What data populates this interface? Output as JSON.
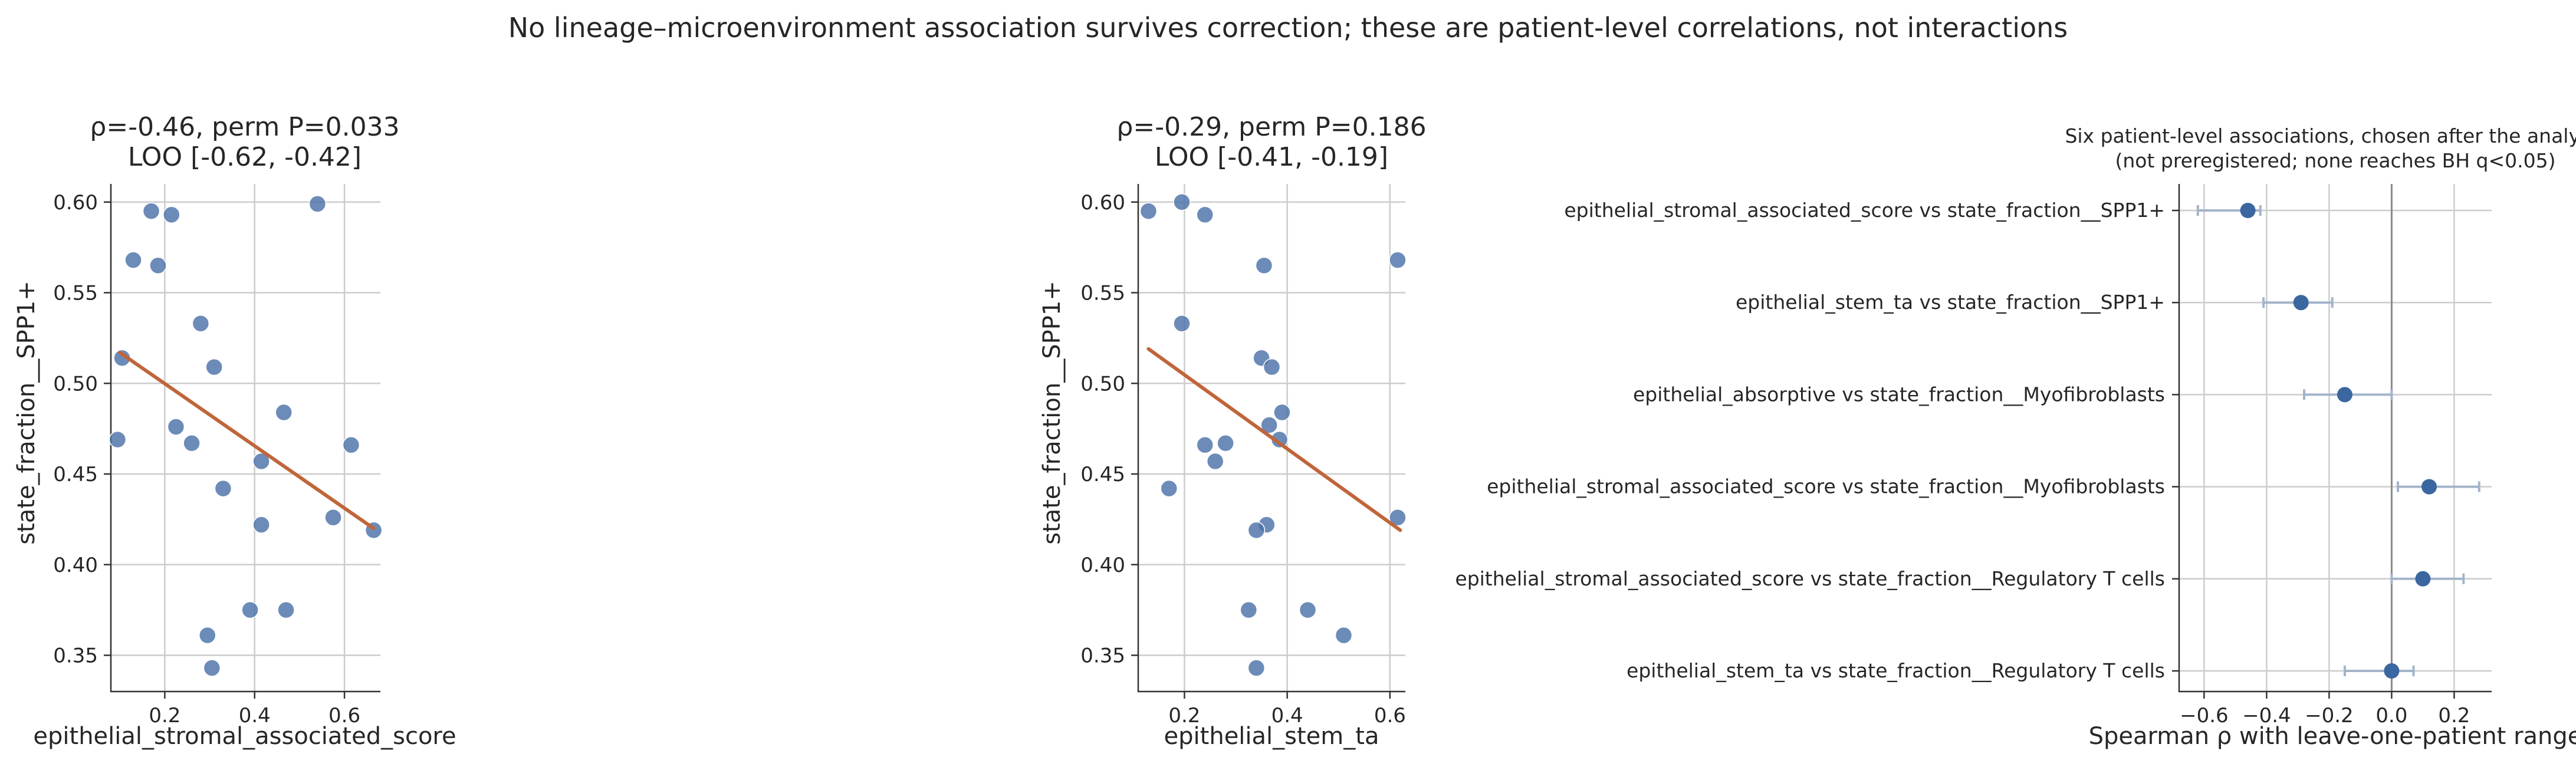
{
  "figure": {
    "suptitle": "No lineage–microenvironment association survives correction; these are patient-level correlations, not interactions"
  },
  "colors": {
    "point": "#4c72a8",
    "fit_line": "#c0653a",
    "forest_point": "#3b66a0",
    "forest_range": "#a3b4c9",
    "zero_line": "#8a8a8a"
  },
  "chart_data": [
    {
      "type": "scatter",
      "title_lines": [
        "ρ=-0.46, perm P=0.033",
        "LOO [-0.62, -0.42]"
      ],
      "xlabel": "epithelial_stromal_associated_score",
      "ylabel": "state_fraction__SPP1+",
      "xlim": [
        0.08,
        0.68
      ],
      "ylim": [
        0.33,
        0.61
      ],
      "xticks": [
        0.2,
        0.4,
        0.6
      ],
      "xtick_labels": [
        "0.2",
        "0.4",
        "0.6"
      ],
      "yticks": [
        0.35,
        0.4,
        0.45,
        0.5,
        0.55,
        0.6
      ],
      "ytick_labels": [
        "0.35",
        "0.40",
        "0.45",
        "0.50",
        "0.55",
        "0.60"
      ],
      "grid": true,
      "points": [
        {
          "x": 0.17,
          "y": 0.595
        },
        {
          "x": 0.215,
          "y": 0.593
        },
        {
          "x": 0.54,
          "y": 0.599
        },
        {
          "x": 0.13,
          "y": 0.568
        },
        {
          "x": 0.185,
          "y": 0.565
        },
        {
          "x": 0.28,
          "y": 0.533
        },
        {
          "x": 0.105,
          "y": 0.514
        },
        {
          "x": 0.31,
          "y": 0.509
        },
        {
          "x": 0.465,
          "y": 0.484
        },
        {
          "x": 0.225,
          "y": 0.476
        },
        {
          "x": 0.095,
          "y": 0.469
        },
        {
          "x": 0.26,
          "y": 0.467
        },
        {
          "x": 0.615,
          "y": 0.466
        },
        {
          "x": 0.415,
          "y": 0.457
        },
        {
          "x": 0.33,
          "y": 0.442
        },
        {
          "x": 0.575,
          "y": 0.426
        },
        {
          "x": 0.415,
          "y": 0.422
        },
        {
          "x": 0.665,
          "y": 0.419
        },
        {
          "x": 0.39,
          "y": 0.375
        },
        {
          "x": 0.47,
          "y": 0.375
        },
        {
          "x": 0.295,
          "y": 0.361
        },
        {
          "x": 0.305,
          "y": 0.343
        }
      ],
      "fit_line": {
        "x": [
          0.1,
          0.665
        ],
        "y": [
          0.517,
          0.42
        ]
      }
    },
    {
      "type": "scatter",
      "title_lines": [
        "ρ=-0.29, perm P=0.186",
        "LOO [-0.41, -0.19]"
      ],
      "xlabel": "epithelial_stem_ta",
      "ylabel": "state_fraction__SPP1+",
      "xlim": [
        0.11,
        0.63
      ],
      "ylim": [
        0.33,
        0.61
      ],
      "xticks": [
        0.2,
        0.4,
        0.6
      ],
      "xtick_labels": [
        "0.2",
        "0.4",
        "0.6"
      ],
      "yticks": [
        0.35,
        0.4,
        0.45,
        0.5,
        0.55,
        0.6
      ],
      "ytick_labels": [
        "0.35",
        "0.40",
        "0.45",
        "0.50",
        "0.55",
        "0.60"
      ],
      "grid": true,
      "points": [
        {
          "x": 0.13,
          "y": 0.595
        },
        {
          "x": 0.195,
          "y": 0.6
        },
        {
          "x": 0.24,
          "y": 0.593
        },
        {
          "x": 0.355,
          "y": 0.565
        },
        {
          "x": 0.615,
          "y": 0.568
        },
        {
          "x": 0.195,
          "y": 0.533
        },
        {
          "x": 0.35,
          "y": 0.514
        },
        {
          "x": 0.37,
          "y": 0.509
        },
        {
          "x": 0.39,
          "y": 0.484
        },
        {
          "x": 0.365,
          "y": 0.477
        },
        {
          "x": 0.385,
          "y": 0.469
        },
        {
          "x": 0.28,
          "y": 0.467
        },
        {
          "x": 0.24,
          "y": 0.466
        },
        {
          "x": 0.26,
          "y": 0.457
        },
        {
          "x": 0.17,
          "y": 0.442
        },
        {
          "x": 0.615,
          "y": 0.426
        },
        {
          "x": 0.36,
          "y": 0.422
        },
        {
          "x": 0.34,
          "y": 0.419
        },
        {
          "x": 0.325,
          "y": 0.375
        },
        {
          "x": 0.44,
          "y": 0.375
        },
        {
          "x": 0.51,
          "y": 0.361
        },
        {
          "x": 0.34,
          "y": 0.343
        }
      ],
      "fit_line": {
        "x": [
          0.13,
          0.62
        ],
        "y": [
          0.519,
          0.419
        ]
      }
    },
    {
      "type": "forest",
      "title_lines": [
        "Six patient-level associations, chosen after the analysis",
        "(not preregistered; none reaches BH q<0.05)"
      ],
      "xlabel": "Spearman ρ with leave-one-patient range",
      "xlim": [
        -0.68,
        0.32
      ],
      "xticks": [
        -0.6,
        -0.4,
        -0.2,
        0.0,
        0.2
      ],
      "xtick_labels": [
        "−0.6",
        "−0.4",
        "−0.2",
        "0.0",
        "0.2"
      ],
      "grid": true,
      "rows": [
        {
          "label": "epithelial_stromal_associated_score vs state_fraction__SPP1+",
          "rho": -0.46,
          "lo": -0.62,
          "hi": -0.42
        },
        {
          "label": "epithelial_stem_ta vs state_fraction__SPP1+",
          "rho": -0.29,
          "lo": -0.41,
          "hi": -0.19
        },
        {
          "label": "epithelial_absorptive vs state_fraction__Myofibroblasts",
          "rho": -0.15,
          "lo": -0.28,
          "hi": 0.0
        },
        {
          "label": "epithelial_stromal_associated_score vs state_fraction__Myofibroblasts",
          "rho": 0.12,
          "lo": 0.02,
          "hi": 0.28
        },
        {
          "label": "epithelial_stromal_associated_score vs state_fraction__Regulatory T cells",
          "rho": 0.1,
          "lo": 0.0,
          "hi": 0.23
        },
        {
          "label": "epithelial_stem_ta vs state_fraction__Regulatory T cells",
          "rho": 0.0,
          "lo": -0.15,
          "hi": 0.07
        }
      ]
    }
  ]
}
